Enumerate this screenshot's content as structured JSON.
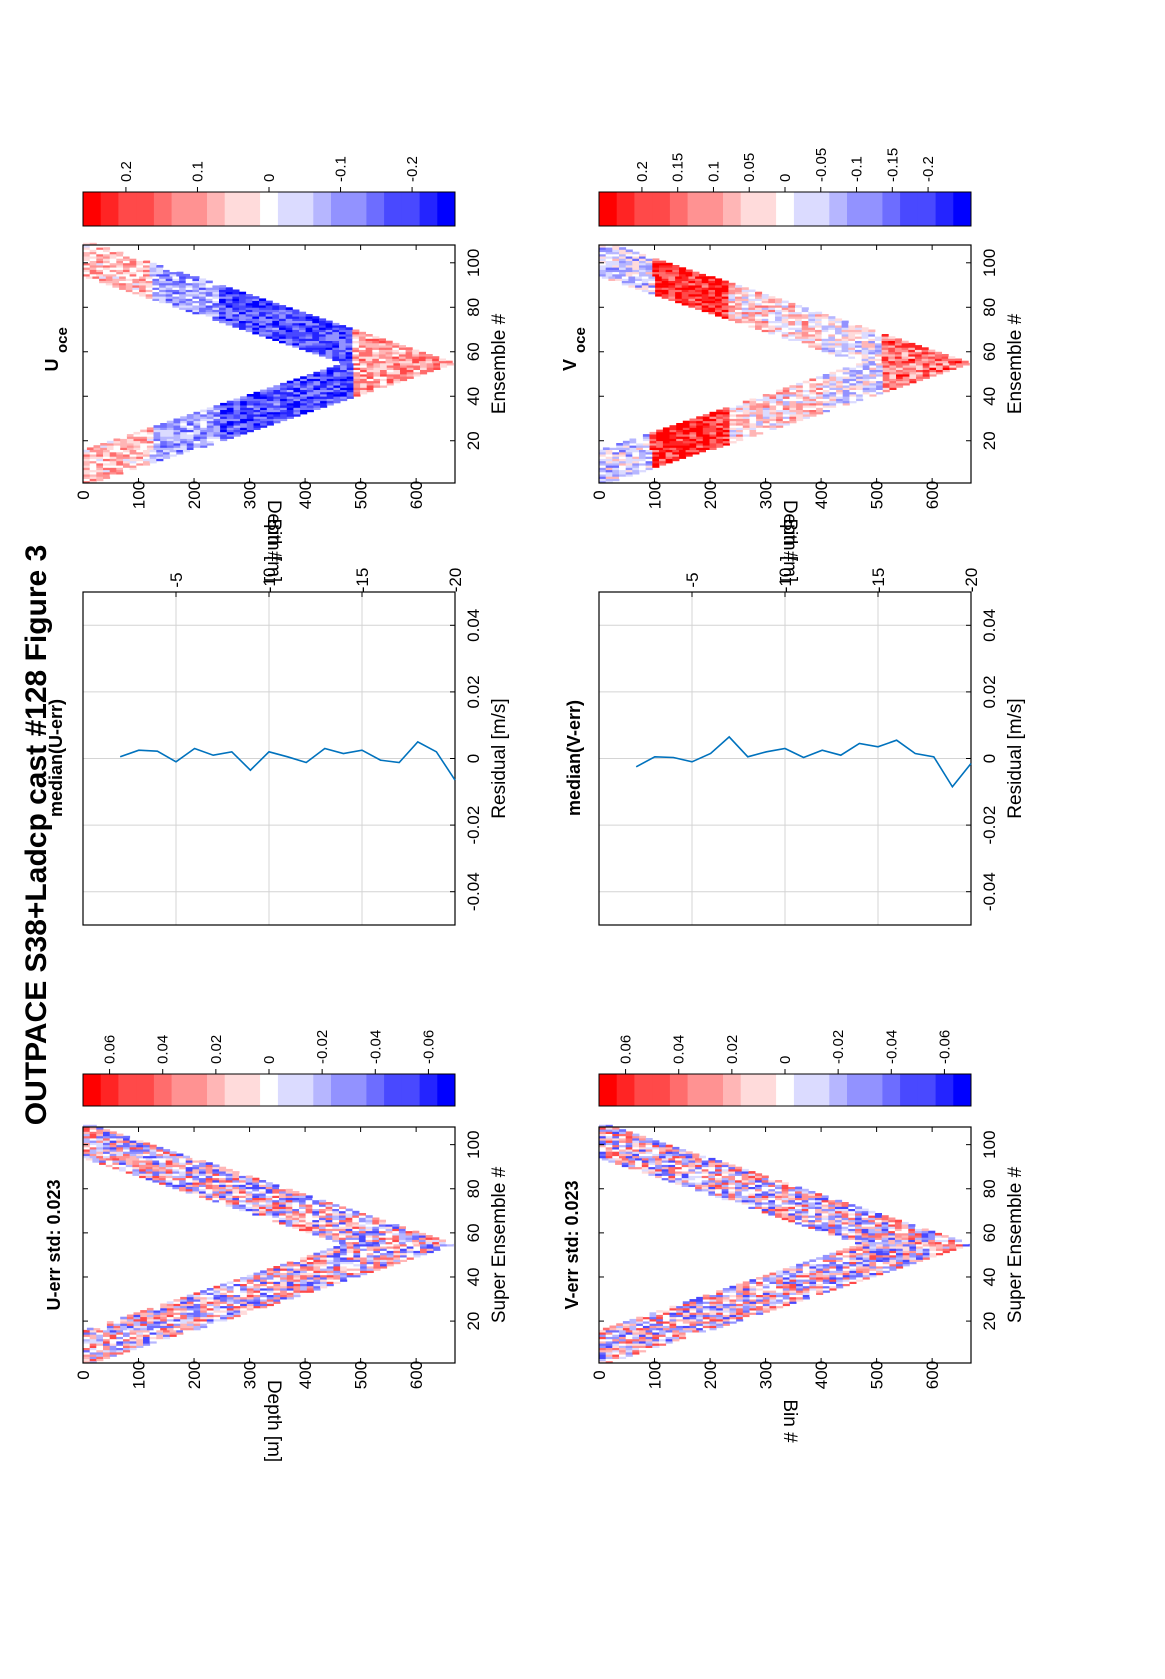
{
  "figure_title": "OUTPACE S38+Ladcp cast #128  Figure 3",
  "colors": {
    "positive": "#ff0000",
    "negative": "#0000ff",
    "zero": "#ffffff",
    "median_line": "#0072bd",
    "grid": "#d4d4d4"
  },
  "chart_data": [
    {
      "id": "u_err",
      "type": "heatmap",
      "title": "U-err std: 0.023",
      "xlabel": "Super Ensemble #",
      "ylabel": "Depth [m]",
      "x_ticks": [
        "20",
        "40",
        "60",
        "80",
        "100"
      ],
      "y_ticks": [
        "0",
        "100",
        "200",
        "300",
        "400",
        "500",
        "600"
      ],
      "xlim": [
        1,
        108
      ],
      "ylim": [
        0,
        670
      ],
      "colorbar": {
        "range": [
          -0.07,
          0.07
        ],
        "ticks": [
          "0.06",
          "0.04",
          "0.02",
          "0",
          "-0.02",
          "-0.04",
          "-0.06"
        ]
      },
      "pattern": "V-shaped band: depth increases to ~660 m at ensemble ~55 and returns to surface; small-scale alternating red/blue residuals"
    },
    {
      "id": "median_u",
      "type": "line",
      "title": "median(U-err)",
      "xlabel": "Bin #",
      "ylabel": "Residual [m/s]",
      "x_ticks": [
        "-5",
        "-10",
        "-15",
        "-20"
      ],
      "y_ticks": [
        "-0.04",
        "-0.02",
        "0",
        "0.02",
        "0.04"
      ],
      "xlim": [
        0,
        -20
      ],
      "ylim": [
        -0.05,
        0.05
      ],
      "x": [
        -2,
        -3,
        -4,
        -5,
        -6,
        -7,
        -8,
        -9,
        -10,
        -11,
        -12,
        -13,
        -14,
        -15,
        -16,
        -17,
        -18,
        -19,
        -20
      ],
      "y": [
        0.0005,
        0.0025,
        0.0022,
        -0.001,
        0.003,
        0.001,
        0.002,
        -0.0035,
        0.002,
        0.0005,
        -0.0012,
        0.003,
        0.0015,
        0.0025,
        -0.0005,
        -0.0012,
        0.005,
        0.002,
        -0.0065
      ]
    },
    {
      "id": "u_oce",
      "type": "heatmap",
      "title": "U",
      "title_sub": "oce",
      "xlabel": "Ensemble #",
      "ylabel": "Depth [m]",
      "x_ticks": [
        "20",
        "40",
        "60",
        "80",
        "100"
      ],
      "y_ticks": [
        "0",
        "100",
        "200",
        "300",
        "400",
        "500",
        "600"
      ],
      "xlim": [
        1,
        108
      ],
      "ylim": [
        0,
        670
      ],
      "colorbar": {
        "range": [
          -0.26,
          0.26
        ],
        "ticks": [
          "0.2",
          "0.1",
          "0",
          "-0.1",
          "-0.2"
        ]
      },
      "pattern": "V-shaped band; near-surface weakly positive, strong negative core 250-470 m, positive near bottom"
    },
    {
      "id": "v_err",
      "type": "heatmap",
      "title": "V-err std: 0.023",
      "xlabel": "Super Ensemble #",
      "ylabel": "Bin #",
      "x_ticks": [
        "20",
        "40",
        "60",
        "80",
        "100"
      ],
      "y_ticks": [
        "0",
        "100",
        "200",
        "300",
        "400",
        "500",
        "600"
      ],
      "xlim": [
        1,
        108
      ],
      "ylim": [
        0,
        670
      ],
      "colorbar": {
        "range": [
          -0.07,
          0.07
        ],
        "ticks": [
          "0.06",
          "0.04",
          "0.02",
          "0",
          "-0.02",
          "-0.04",
          "-0.06"
        ]
      },
      "pattern": "V-shaped band with small-scale alternating red/blue residuals"
    },
    {
      "id": "median_v",
      "type": "line",
      "title": "median(V-err)",
      "xlabel": "Bin #",
      "ylabel": "Residual [m/s]",
      "x_ticks": [
        "-5",
        "-10",
        "-15",
        "-20"
      ],
      "y_ticks": [
        "-0.04",
        "-0.02",
        "0",
        "0.02",
        "0.04"
      ],
      "xlim": [
        0,
        -20
      ],
      "ylim": [
        -0.05,
        0.05
      ],
      "x": [
        -2,
        -3,
        -4,
        -5,
        -6,
        -7,
        -8,
        -9,
        -10,
        -11,
        -12,
        -13,
        -14,
        -15,
        -16,
        -17,
        -18,
        -19,
        -20
      ],
      "y": [
        -0.0025,
        0.0005,
        0.0003,
        -0.001,
        0.0015,
        0.0065,
        0.0005,
        0.002,
        0.003,
        0.0003,
        0.0025,
        0.001,
        0.0045,
        0.0035,
        0.0055,
        0.0015,
        0.0005,
        -0.0085,
        -0.0015
      ]
    },
    {
      "id": "v_oce",
      "type": "heatmap",
      "title": "V",
      "title_sub": "oce",
      "xlabel": "Ensemble #",
      "ylabel": "Depth [m]",
      "x_ticks": [
        "20",
        "40",
        "60",
        "80",
        "100"
      ],
      "y_ticks": [
        "0",
        "100",
        "200",
        "300",
        "400",
        "500",
        "600"
      ],
      "xlim": [
        1,
        108
      ],
      "ylim": [
        0,
        670
      ],
      "colorbar": {
        "range": [
          -0.26,
          0.26
        ],
        "ticks": [
          "0.2",
          "0.15",
          "0.1",
          "0.05",
          "0",
          "-0.05",
          "-0.1",
          "-0.15",
          "-0.2"
        ]
      },
      "pattern": "V-shaped band; strong positive 100-220 m, mixed weak values deeper, positive near bottom"
    }
  ]
}
